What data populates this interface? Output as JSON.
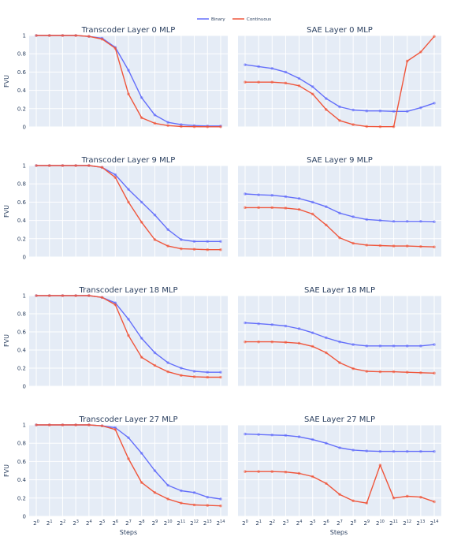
{
  "legend": {
    "binary": "Binary",
    "continuous": "Continuous"
  },
  "colors": {
    "binary": "#636efa",
    "continuous": "#ef553b",
    "panel": "#e5ecf6"
  },
  "axis_labels": {
    "x": "Steps",
    "y": "FVU"
  },
  "y_ticks": [
    "0",
    "0.2",
    "0.4",
    "0.6",
    "0.8",
    "1"
  ],
  "x_tick_exponents": [
    "0",
    "1",
    "2",
    "3",
    "4",
    "5",
    "6",
    "7",
    "8",
    "9",
    "10",
    "11",
    "12",
    "13",
    "14"
  ],
  "x_tick_base": "2",
  "chart_data": [
    {
      "type": "line",
      "title": "Transcoder Layer 0 MLP",
      "xlabel": "",
      "ylabel": "FVU",
      "ylim": [
        0,
        1
      ],
      "x": [
        1,
        2,
        4,
        8,
        16,
        32,
        64,
        128,
        256,
        512,
        1024,
        2048,
        4096,
        8192,
        16384
      ],
      "x_scale": "log2",
      "series": [
        {
          "name": "Binary",
          "values": [
            1.0,
            1.0,
            1.0,
            1.0,
            0.99,
            0.97,
            0.87,
            0.62,
            0.32,
            0.13,
            0.05,
            0.025,
            0.015,
            0.01,
            0.01
          ]
        },
        {
          "name": "Continuous",
          "values": [
            1.0,
            1.0,
            1.0,
            1.0,
            0.99,
            0.96,
            0.86,
            0.36,
            0.1,
            0.04,
            0.015,
            0.005,
            0.003,
            0.002,
            0.002
          ]
        }
      ]
    },
    {
      "type": "line",
      "title": "SAE Layer 0 MLP",
      "xlabel": "",
      "ylabel": "",
      "ylim": [
        0,
        1
      ],
      "x": [
        1,
        2,
        4,
        8,
        16,
        32,
        64,
        128,
        256,
        512,
        1024,
        2048,
        4096,
        8192,
        16384
      ],
      "x_scale": "log2",
      "series": [
        {
          "name": "Binary",
          "values": [
            0.68,
            0.66,
            0.64,
            0.6,
            0.53,
            0.44,
            0.31,
            0.22,
            0.185,
            0.175,
            0.175,
            0.17,
            0.17,
            0.21,
            0.26
          ]
        },
        {
          "name": "Continuous",
          "values": [
            0.49,
            0.49,
            0.49,
            0.48,
            0.45,
            0.36,
            0.19,
            0.07,
            0.025,
            0.005,
            0.003,
            0.003,
            0.72,
            0.82,
            0.99
          ]
        }
      ]
    },
    {
      "type": "line",
      "title": "Transcoder Layer 9 MLP",
      "xlabel": "",
      "ylabel": "FVU",
      "ylim": [
        0,
        1
      ],
      "x": [
        1,
        2,
        4,
        8,
        16,
        32,
        64,
        128,
        256,
        512,
        1024,
        2048,
        4096,
        8192,
        16384
      ],
      "x_scale": "log2",
      "series": [
        {
          "name": "Binary",
          "values": [
            1.0,
            1.0,
            1.0,
            1.0,
            1.0,
            0.98,
            0.9,
            0.74,
            0.6,
            0.46,
            0.3,
            0.19,
            0.17,
            0.17,
            0.17
          ]
        },
        {
          "name": "Continuous",
          "values": [
            1.0,
            1.0,
            1.0,
            1.0,
            1.0,
            0.98,
            0.87,
            0.6,
            0.38,
            0.19,
            0.12,
            0.09,
            0.085,
            0.08,
            0.08
          ]
        }
      ]
    },
    {
      "type": "line",
      "title": "SAE Layer 9 MLP",
      "xlabel": "",
      "ylabel": "",
      "ylim": [
        0,
        1
      ],
      "x": [
        1,
        2,
        4,
        8,
        16,
        32,
        64,
        128,
        256,
        512,
        1024,
        2048,
        4096,
        8192,
        16384
      ],
      "x_scale": "log2",
      "series": [
        {
          "name": "Binary",
          "values": [
            0.69,
            0.68,
            0.675,
            0.66,
            0.64,
            0.6,
            0.55,
            0.48,
            0.44,
            0.41,
            0.4,
            0.39,
            0.39,
            0.39,
            0.385
          ]
        },
        {
          "name": "Continuous",
          "values": [
            0.54,
            0.54,
            0.54,
            0.535,
            0.52,
            0.47,
            0.35,
            0.21,
            0.15,
            0.13,
            0.125,
            0.12,
            0.12,
            0.115,
            0.11
          ]
        }
      ]
    },
    {
      "type": "line",
      "title": "Transcoder Layer 18 MLP",
      "xlabel": "",
      "ylabel": "FVU",
      "ylim": [
        0,
        1
      ],
      "x": [
        1,
        2,
        4,
        8,
        16,
        32,
        64,
        128,
        256,
        512,
        1024,
        2048,
        4096,
        8192,
        16384
      ],
      "x_scale": "log2",
      "series": [
        {
          "name": "Binary",
          "values": [
            1.0,
            1.0,
            1.0,
            1.0,
            1.0,
            0.98,
            0.92,
            0.74,
            0.53,
            0.37,
            0.26,
            0.2,
            0.165,
            0.155,
            0.155
          ]
        },
        {
          "name": "Continuous",
          "values": [
            1.0,
            1.0,
            1.0,
            1.0,
            1.0,
            0.98,
            0.9,
            0.56,
            0.32,
            0.23,
            0.16,
            0.12,
            0.105,
            0.1,
            0.1
          ]
        }
      ]
    },
    {
      "type": "line",
      "title": "SAE Layer 18 MLP",
      "xlabel": "",
      "ylabel": "",
      "ylim": [
        0,
        1
      ],
      "x": [
        1,
        2,
        4,
        8,
        16,
        32,
        64,
        128,
        256,
        512,
        1024,
        2048,
        4096,
        8192,
        16384
      ],
      "x_scale": "log2",
      "series": [
        {
          "name": "Binary",
          "values": [
            0.7,
            0.69,
            0.68,
            0.665,
            0.635,
            0.59,
            0.535,
            0.49,
            0.46,
            0.445,
            0.445,
            0.445,
            0.445,
            0.445,
            0.46
          ]
        },
        {
          "name": "Continuous",
          "values": [
            0.49,
            0.49,
            0.49,
            0.485,
            0.475,
            0.44,
            0.37,
            0.26,
            0.195,
            0.165,
            0.16,
            0.16,
            0.155,
            0.15,
            0.145
          ]
        }
      ]
    },
    {
      "type": "line",
      "title": "Transcoder Layer 27 MLP",
      "xlabel": "Steps",
      "ylabel": "FVU",
      "ylim": [
        0,
        1
      ],
      "x": [
        1,
        2,
        4,
        8,
        16,
        32,
        64,
        128,
        256,
        512,
        1024,
        2048,
        4096,
        8192,
        16384
      ],
      "x_scale": "log2",
      "series": [
        {
          "name": "Binary",
          "values": [
            1.0,
            1.0,
            1.0,
            1.0,
            1.0,
            0.99,
            0.97,
            0.86,
            0.69,
            0.5,
            0.34,
            0.28,
            0.26,
            0.21,
            0.19
          ]
        },
        {
          "name": "Continuous",
          "values": [
            1.0,
            1.0,
            1.0,
            1.0,
            1.0,
            0.99,
            0.95,
            0.63,
            0.37,
            0.26,
            0.19,
            0.145,
            0.125,
            0.12,
            0.115
          ]
        }
      ]
    },
    {
      "type": "line",
      "title": "SAE Layer 27 MLP",
      "xlabel": "Steps",
      "ylabel": "",
      "ylim": [
        0,
        1
      ],
      "x": [
        1,
        2,
        4,
        8,
        16,
        32,
        64,
        128,
        256,
        512,
        1024,
        2048,
        4096,
        8192,
        16384
      ],
      "x_scale": "log2",
      "series": [
        {
          "name": "Binary",
          "values": [
            0.9,
            0.895,
            0.89,
            0.885,
            0.87,
            0.84,
            0.8,
            0.75,
            0.725,
            0.715,
            0.71,
            0.71,
            0.71,
            0.71,
            0.71
          ]
        },
        {
          "name": "Continuous",
          "values": [
            0.49,
            0.49,
            0.49,
            0.485,
            0.47,
            0.435,
            0.36,
            0.24,
            0.17,
            0.145,
            0.56,
            0.2,
            0.22,
            0.21,
            0.16
          ]
        }
      ]
    }
  ]
}
